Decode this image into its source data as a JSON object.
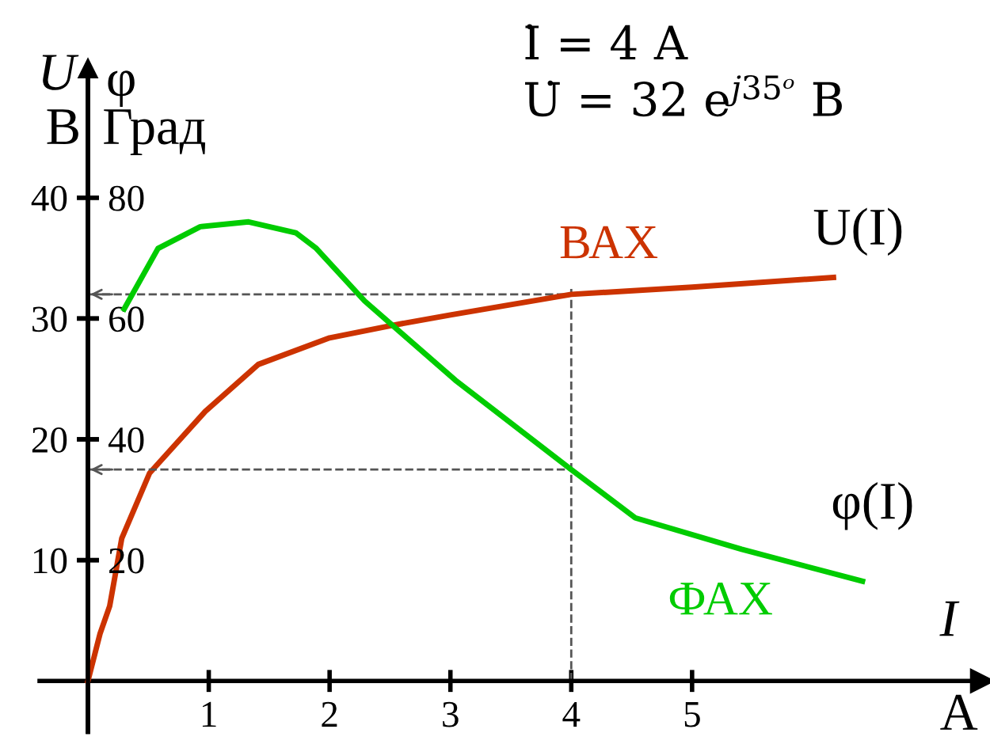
{
  "chart_data": {
    "type": "line",
    "xlabel": "I",
    "ylabel": "U",
    "y2label": "φ",
    "annotations": [
      "В",
      "Град",
      "А",
      "İ = 4 А",
      "U̇ = 32 e$^{j35ᵒ}$ В",
      "U(I)",
      "φ(I)"
    ],
    "series": [
      {
        "name": "ВАХ",
        "color": "#cc3300",
        "x": [
          0,
          0.1,
          0.18,
          0.28,
          0.51,
          0.97,
          1.41,
          2,
          2.5,
          3,
          4,
          5,
          6.17
        ],
        "values": [
          0,
          3.9,
          6.2,
          11.8,
          17.2,
          22.3,
          26.2,
          28.4,
          29.4,
          30.3,
          32,
          32.6,
          33.4
        ]
      },
      {
        "name": "ФАХ",
        "color": "#00cc00",
        "axis": "y2",
        "x": [
          0.3,
          0.58,
          0.93,
          1.33,
          1.72,
          1.89,
          2.29,
          3.04,
          4,
          4.53,
          5.41,
          6.41
        ],
        "values": [
          61.6,
          71.6,
          75.2,
          76,
          74.2,
          71.6,
          62.9,
          49.8,
          35,
          27,
          21.8,
          16.5
        ]
      }
    ],
    "xlim": [
      -0.4,
      7.4
    ],
    "xticks": [
      1,
      2,
      3,
      4,
      5
    ],
    "ylim": [
      -4.2,
      50.7
    ],
    "yticks": [
      10,
      20,
      30,
      40
    ],
    "y2lim": [
      -8.4,
      101.4
    ],
    "y2ticks": [
      20,
      40,
      60,
      80
    ],
    "ref_lines": [
      {
        "axis": "x",
        "value": 4,
        "color": "#555555",
        "line_style": "dashed"
      },
      {
        "axis": "y",
        "value": 32,
        "color": "#555555",
        "line_style": "dashed"
      },
      {
        "axis": "y2",
        "value": 35,
        "color": "#555555",
        "line_style": "dashed"
      }
    ],
    "grid": false,
    "legend": false,
    "marker": "none",
    "line_style": "solid"
  }
}
